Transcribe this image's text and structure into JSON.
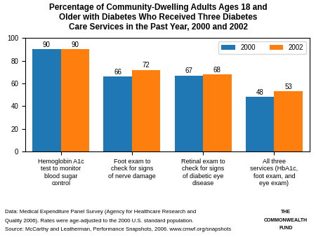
{
  "chart_data": {
    "type": "bar",
    "title": "Percentage of Community-Dwelling Adults Ages 18 and\nOlder with Diabetes Who Received Three Diabetes\nCare Services in the Past Year, 2000 and 2002",
    "categories": [
      "Hemoglobin A1c\ntest to monitor\nblood sugar\ncontrol",
      "Foot exam to\ncheck for signs\nof nerve damage",
      "Retinal exam to\ncheck for signs\nof diabetic eye\ndisease",
      "All three\nservices (HbA1c,\nfoot exam, and\neye exam)"
    ],
    "series": [
      {
        "name": "2000",
        "values": [
          90,
          66,
          67,
          48
        ]
      },
      {
        "name": "2002",
        "values": [
          90,
          72,
          68,
          53
        ]
      }
    ],
    "ylim": [
      0,
      100
    ],
    "yticks": [
      0,
      20,
      40,
      60,
      80,
      100
    ],
    "data_labels": true,
    "legend": "upper right",
    "annotations": [
      "Data: Medical Expenditure Panel Survey (Agency for Healthcare Research and",
      "Quality 2006). Rates were age-adjusted to the 2000 U.S. standard population.",
      "Source: McCarthy and Leatherman, Performance Snapshots, 2006. www.cmwf.org/snapshots",
      "THE",
      "COMMONWEALTH",
      "FUND"
    ]
  }
}
